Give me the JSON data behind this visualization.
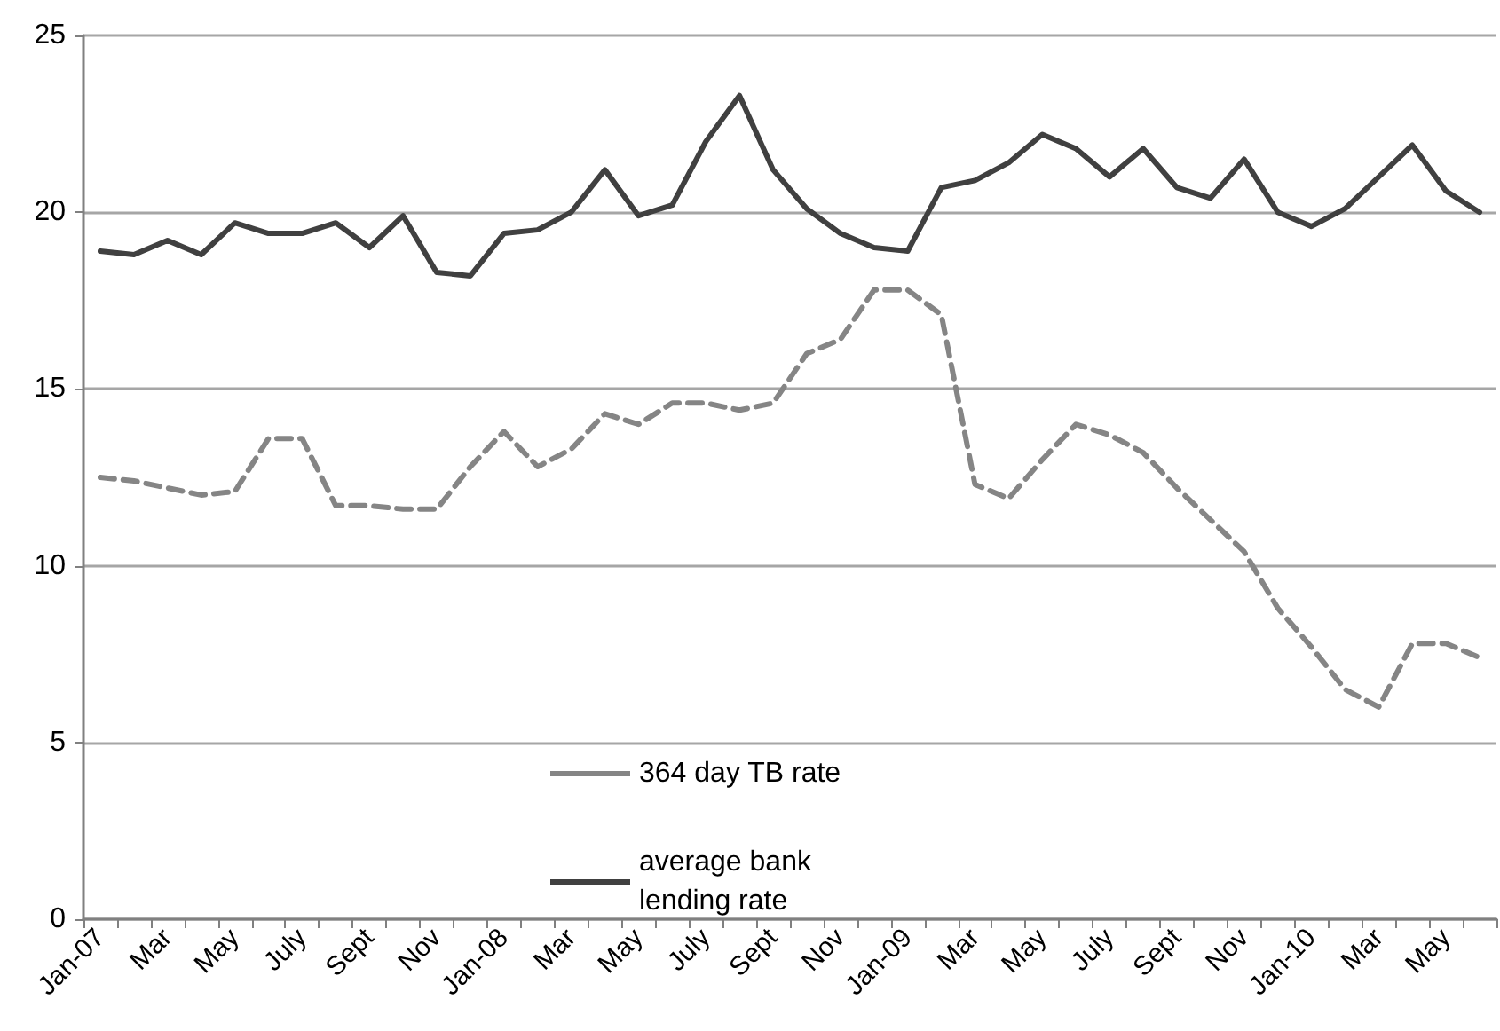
{
  "chart_data": {
    "type": "line",
    "categories": [
      "Jan-07",
      null,
      "Mar",
      null,
      "May",
      null,
      "July",
      null,
      "Sept",
      null,
      "Nov",
      null,
      "Jan-08",
      null,
      "Mar",
      null,
      "May",
      null,
      "July",
      null,
      "Sept",
      null,
      "Nov",
      null,
      "Jan-09",
      null,
      "Mar",
      null,
      "May",
      null,
      "July",
      null,
      "Sept",
      null,
      "Nov",
      null,
      "Jan-10",
      null,
      "Mar",
      null,
      "May",
      null
    ],
    "series": [
      {
        "name": "364 day TB rate",
        "color": "#858585",
        "line_style": "dashed",
        "values": [
          12.5,
          12.4,
          12.2,
          12.0,
          12.1,
          13.6,
          13.6,
          11.7,
          11.7,
          11.6,
          11.6,
          12.8,
          13.8,
          12.8,
          13.3,
          14.3,
          14.0,
          14.6,
          14.6,
          14.4,
          14.6,
          16.0,
          16.4,
          17.8,
          17.8,
          17.1,
          12.3,
          11.9,
          13.0,
          14.0,
          13.7,
          13.2,
          12.2,
          11.3,
          10.4,
          8.8,
          7.7,
          6.5,
          6.0,
          7.8,
          7.8,
          7.4
        ]
      },
      {
        "name": "average bank lending rate",
        "color": "#404040",
        "line_style": "solid",
        "values": [
          18.9,
          18.8,
          19.2,
          18.8,
          19.7,
          19.4,
          19.4,
          19.7,
          19.0,
          19.9,
          18.3,
          18.2,
          19.4,
          19.5,
          20.0,
          21.2,
          19.9,
          20.2,
          22.0,
          23.3,
          21.2,
          20.1,
          19.4,
          19.0,
          18.9,
          20.7,
          20.9,
          21.4,
          22.2,
          21.8,
          21.0,
          21.8,
          20.7,
          20.4,
          21.5,
          20.0,
          19.6,
          20.1,
          21.0,
          21.9,
          20.6,
          20.0
        ]
      }
    ],
    "ylim": [
      0,
      25
    ],
    "yticks": [
      0,
      5,
      10,
      15,
      20,
      25
    ],
    "grid": "y",
    "legend": "bottom left",
    "marker": "none"
  }
}
